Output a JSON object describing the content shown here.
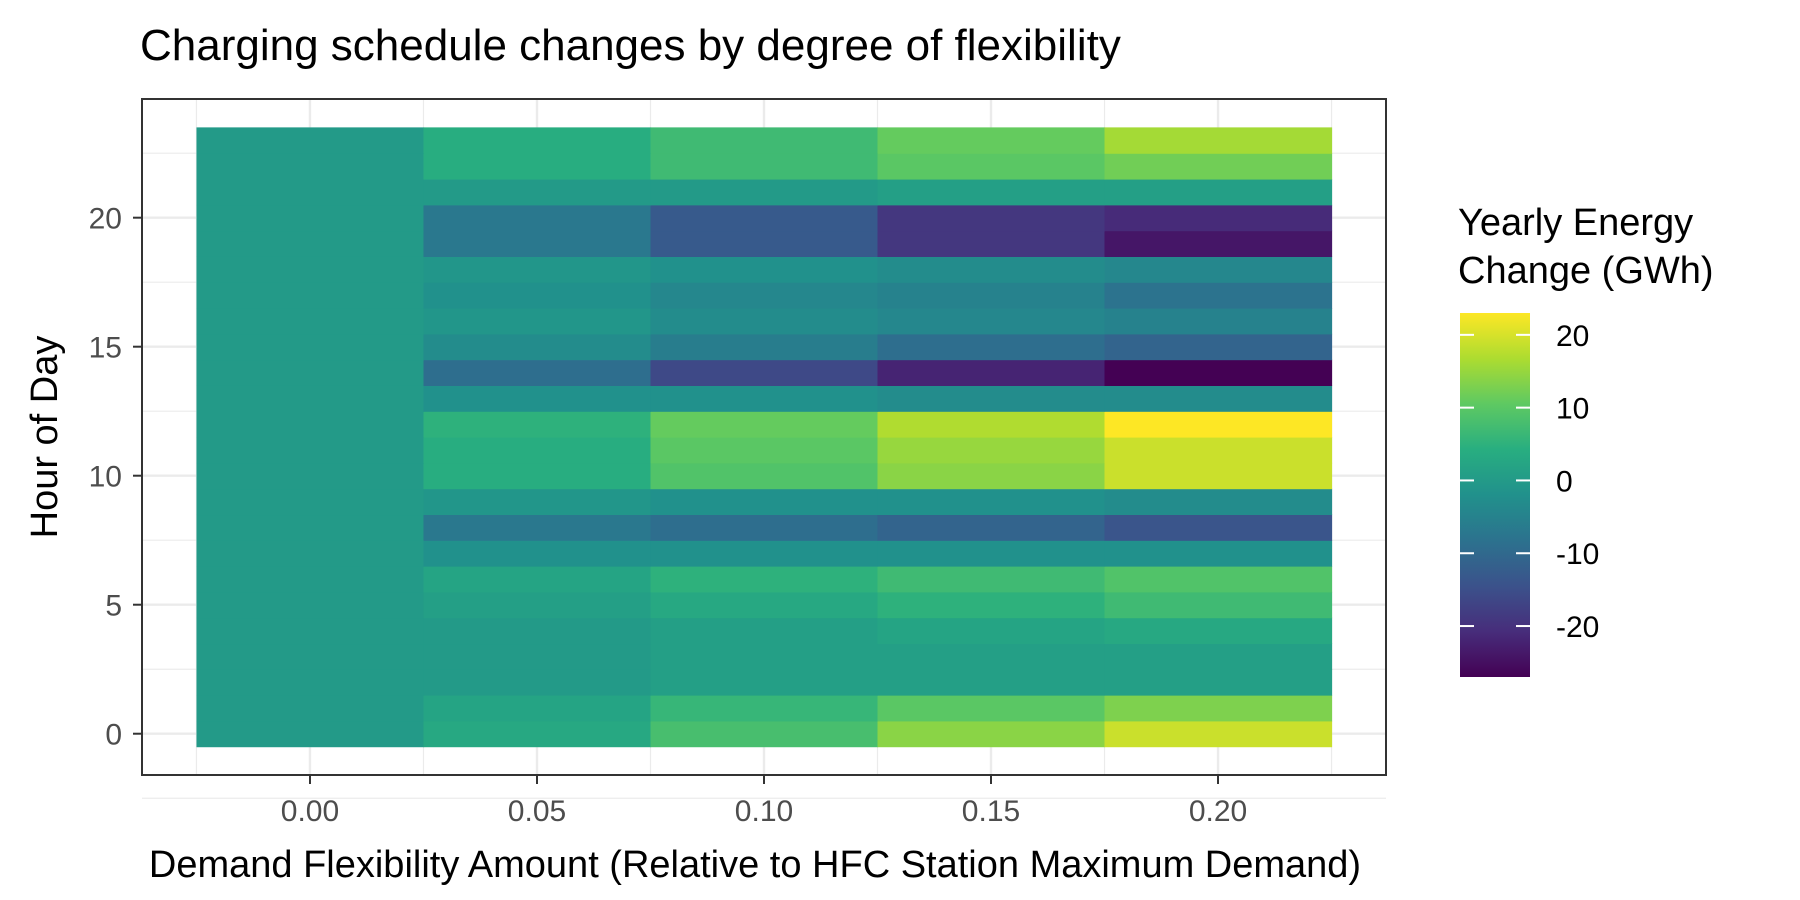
{
  "chart_data": {
    "type": "heatmap",
    "title": "Charging schedule changes by degree of flexibility",
    "xlabel": "Demand Flexibility Amount (Relative to HFC Station Maximum Demand)",
    "ylabel": "Hour of Day",
    "x": [
      0.0,
      0.05,
      0.1,
      0.15,
      0.2
    ],
    "y": [
      0,
      1,
      2,
      3,
      4,
      5,
      6,
      7,
      8,
      9,
      10,
      11,
      12,
      13,
      14,
      15,
      16,
      17,
      18,
      19,
      20,
      21,
      22,
      23
    ],
    "x_ticks": [
      "0.00",
      "0.05",
      "0.10",
      "0.15",
      "0.20"
    ],
    "y_ticks": [
      "0",
      "5",
      "10",
      "15",
      "20"
    ],
    "xlim": [
      -0.037,
      0.237
    ],
    "ylim": [
      -1.6,
      24.6
    ],
    "grid": true,
    "values": [
      [
        0,
        3,
        8,
        14,
        19
      ],
      [
        0,
        2,
        6,
        10,
        13
      ],
      [
        0,
        0,
        1,
        1,
        1
      ],
      [
        0,
        0,
        1,
        1,
        1
      ],
      [
        0,
        0,
        1,
        2,
        3
      ],
      [
        0,
        1,
        3,
        5,
        7
      ],
      [
        0,
        2,
        5,
        7,
        9
      ],
      [
        0,
        -2,
        -2,
        -2,
        -2
      ],
      [
        0,
        -7,
        -9,
        -11,
        -14
      ],
      [
        0,
        -1,
        -2,
        -2,
        -3
      ],
      [
        0,
        4,
        9,
        14,
        19
      ],
      [
        0,
        4,
        10,
        15,
        19
      ],
      [
        0,
        5,
        11,
        17,
        23
      ],
      [
        0,
        -2,
        -2,
        -3,
        -3
      ],
      [
        0,
        -9,
        -16,
        -22,
        -27
      ],
      [
        0,
        -3,
        -6,
        -9,
        -11
      ],
      [
        0,
        -1,
        -3,
        -4,
        -5
      ],
      [
        0,
        -2,
        -4,
        -5,
        -8
      ],
      [
        0,
        -1,
        -2,
        -3,
        -4
      ],
      [
        0,
        -7,
        -13,
        -19,
        -24
      ],
      [
        0,
        -7,
        -13,
        -19,
        -21
      ],
      [
        0,
        0,
        0,
        1,
        1
      ],
      [
        0,
        4,
        7,
        10,
        12
      ],
      [
        0,
        4,
        7,
        11,
        16
      ]
    ],
    "legend": {
      "title": [
        "Yearly Energy",
        "Change (GWh)"
      ],
      "position": "right",
      "ticks": [
        "20",
        "10",
        "0",
        "-10",
        "-20"
      ],
      "tick_values": [
        20,
        10,
        0,
        -10,
        -20
      ],
      "range": [
        -27,
        23
      ],
      "colormap": "viridis"
    }
  }
}
